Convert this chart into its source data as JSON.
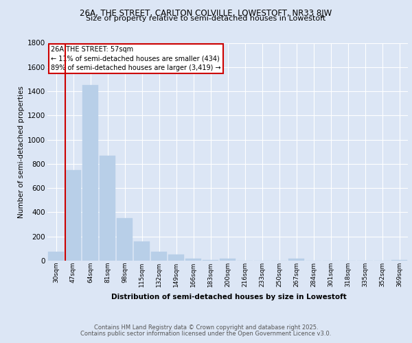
{
  "title_line1": "26A, THE STREET, CARLTON COLVILLE, LOWESTOFT, NR33 8JW",
  "title_line2": "Size of property relative to semi-detached houses in Lowestoft",
  "xlabel": "Distribution of semi-detached houses by size in Lowestoft",
  "ylabel": "Number of semi-detached properties",
  "categories": [
    "30sqm",
    "47sqm",
    "64sqm",
    "81sqm",
    "98sqm",
    "115sqm",
    "132sqm",
    "149sqm",
    "166sqm",
    "183sqm",
    "200sqm",
    "216sqm",
    "233sqm",
    "250sqm",
    "267sqm",
    "284sqm",
    "301sqm",
    "318sqm",
    "335sqm",
    "352sqm",
    "369sqm"
  ],
  "values": [
    75,
    750,
    1450,
    870,
    350,
    160,
    75,
    50,
    15,
    5,
    15,
    0,
    0,
    0,
    15,
    0,
    0,
    0,
    0,
    0,
    5
  ],
  "bar_color": "#b8cfe8",
  "bar_edge_color": "#b8cfe8",
  "annotation_title": "26A THE STREET: 57sqm",
  "annotation_line1": "← 11% of semi-detached houses are smaller (434)",
  "annotation_line2": "89% of semi-detached houses are larger (3,419) →",
  "annotation_box_color": "#ffffff",
  "annotation_box_edge": "#cc0000",
  "vline_color": "#cc0000",
  "footer_line1": "Contains HM Land Registry data © Crown copyright and database right 2025.",
  "footer_line2": "Contains public sector information licensed under the Open Government Licence v3.0.",
  "bg_color": "#dce6f5",
  "plot_bg_color": "#dce6f5",
  "grid_color": "#ffffff",
  "ylim": [
    0,
    1800
  ],
  "yticks": [
    0,
    200,
    400,
    600,
    800,
    1000,
    1200,
    1400,
    1600,
    1800
  ]
}
